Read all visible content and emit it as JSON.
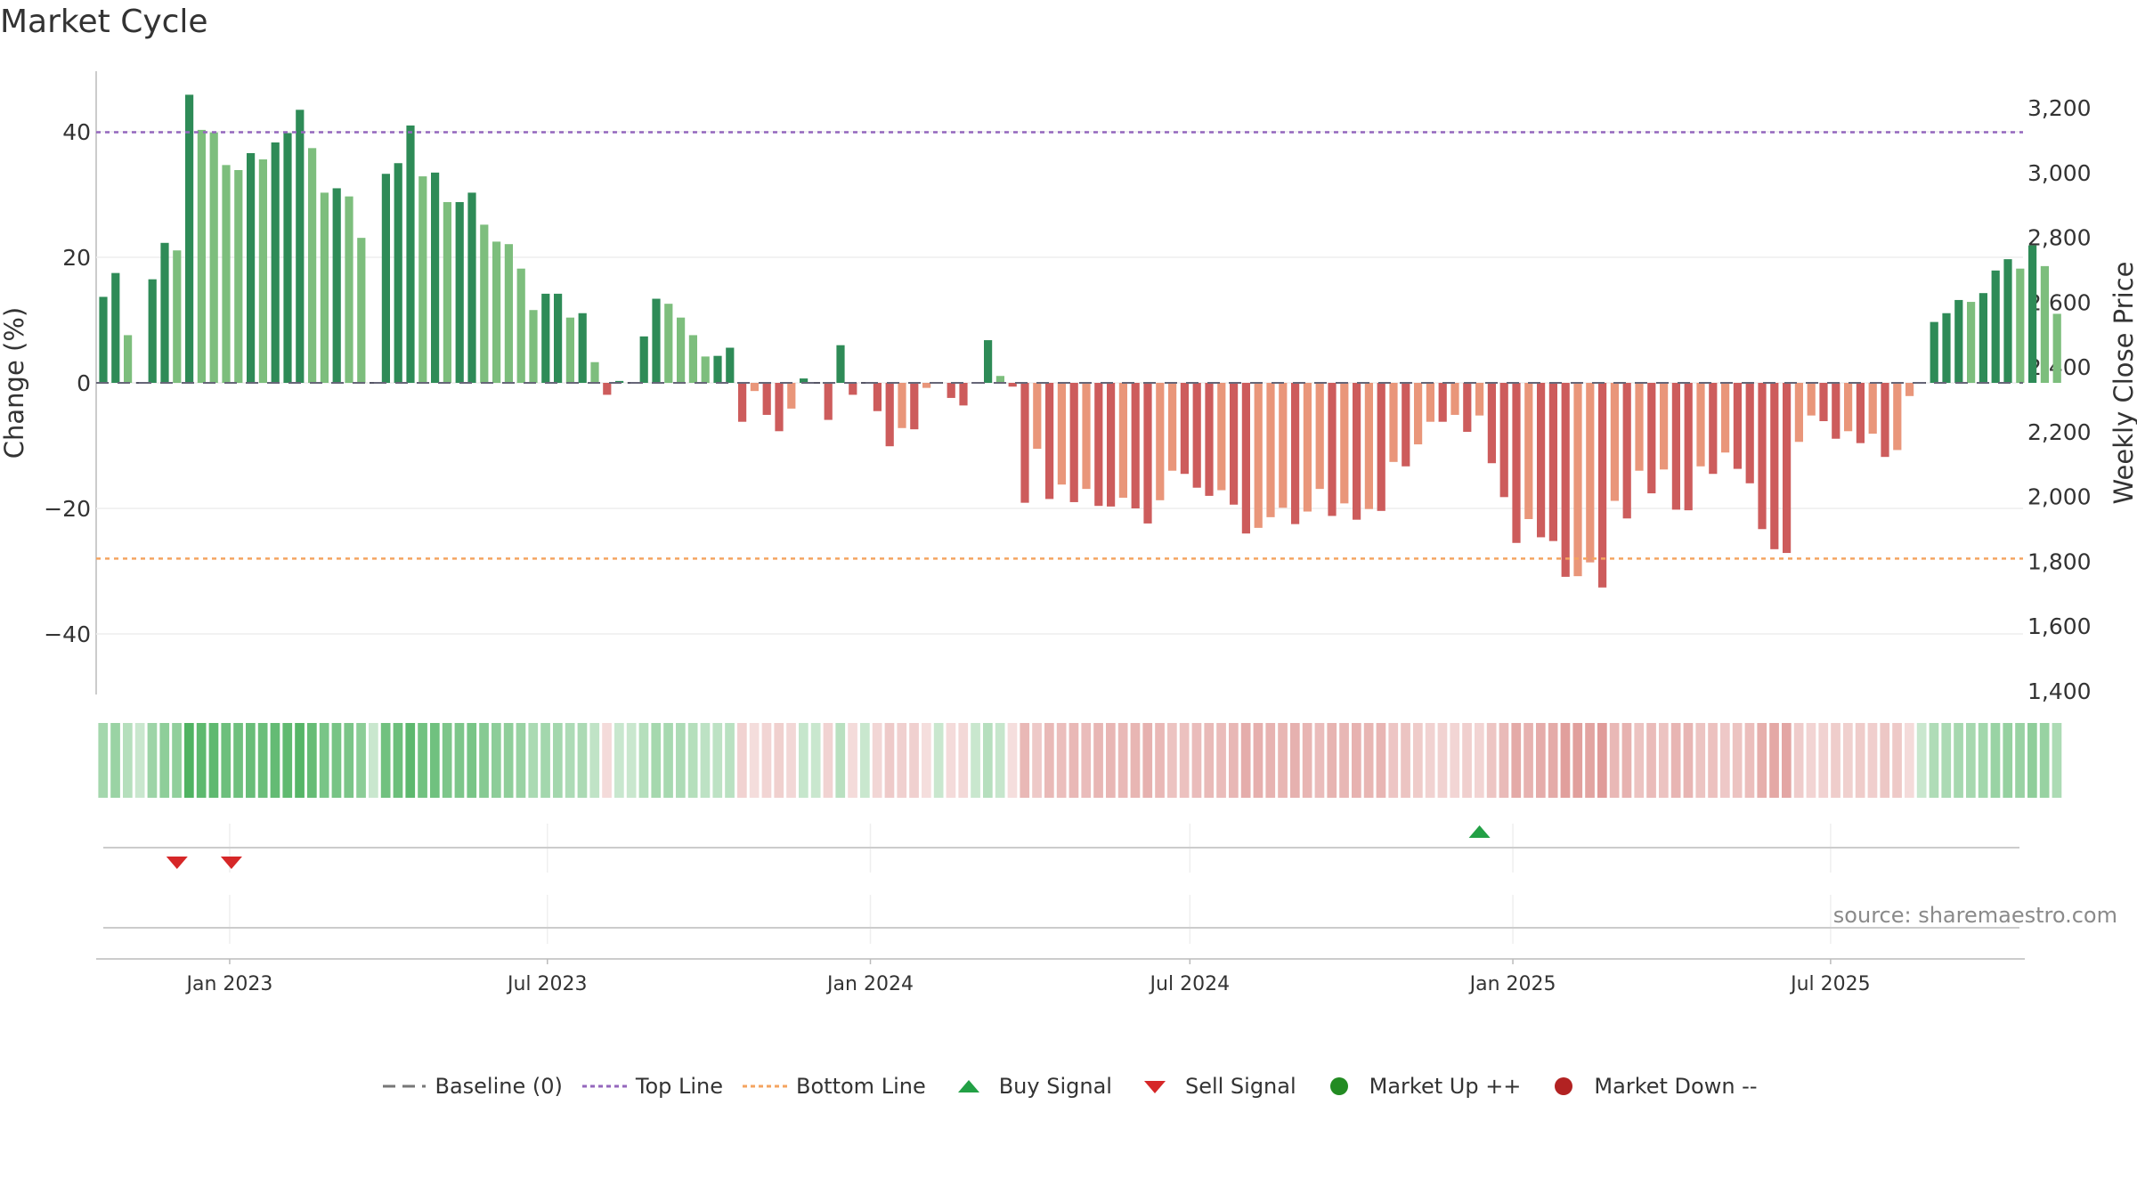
{
  "title": "Market Cycle",
  "source": "source: sharemaestro.com",
  "chart_data": {
    "type": "bar",
    "title": "Market Cycle",
    "start_date": "2022-10-21",
    "ylabel_left": "Change (%)",
    "ylabel_right": "Weekly Close Price",
    "ylim_left": [
      -50,
      50
    ],
    "ylim_right": [
      1400,
      3300
    ],
    "yticks_left": [
      40,
      20,
      0,
      -20,
      -40
    ],
    "yticks_left_labels": [
      "40",
      "20",
      "0",
      "−20",
      "−40"
    ],
    "yticks_right": [
      3200,
      3000,
      2800,
      2600,
      2400,
      2200,
      2000,
      1800,
      1600,
      1400
    ],
    "yticks_right_labels": [
      "3,200",
      "3,000",
      "2,800",
      "2,600",
      "2,400",
      "2,200",
      "2,000",
      "1,800",
      "1,600",
      "1,400"
    ],
    "top_line": 40,
    "bottom_line": -28,
    "xticks": [
      {
        "date": "2023-01-01",
        "label": "Jan 2023"
      },
      {
        "date": "2023-07-01",
        "label": "Jul 2023"
      },
      {
        "date": "2024-01-01",
        "label": "Jan 2024"
      },
      {
        "date": "2024-07-01",
        "label": "Jul 2024"
      },
      {
        "date": "2025-01-01",
        "label": "Jan 2025"
      },
      {
        "date": "2025-07-01",
        "label": "Jul 2025"
      }
    ],
    "values": [
      13.7,
      17.5,
      7.6,
      0,
      16.5,
      22.3,
      21.1,
      45.9,
      40.3,
      39.9,
      34.7,
      33.9,
      36.6,
      35.6,
      38.3,
      39.8,
      43.5,
      37.4,
      30.3,
      31.0,
      29.7,
      23.1,
      0,
      33.3,
      35.0,
      41.0,
      32.9,
      33.5,
      28.8,
      28.8,
      30.3,
      25.2,
      22.5,
      22.1,
      18.2,
      11.6,
      14.2,
      14.2,
      10.4,
      11.1,
      3.3,
      -1.9,
      0.3,
      0,
      7.4,
      13.4,
      12.6,
      10.4,
      7.6,
      4.2,
      4.3,
      5.6,
      -6.2,
      -1.3,
      -5.1,
      -7.7,
      -4.1,
      0.7,
      0,
      -5.9,
      6.0,
      -1.9,
      0,
      -4.5,
      -10.1,
      -7.2,
      -7.4,
      -0.8,
      0,
      -2.4,
      -3.6,
      0,
      6.8,
      1.1,
      -0.6,
      -19.1,
      -10.5,
      -18.5,
      -16.2,
      -19.0,
      -16.9,
      -19.6,
      -19.7,
      -18.3,
      -20.0,
      -22.4,
      -18.7,
      -14.0,
      -14.5,
      -16.7,
      -18.0,
      -17.1,
      -19.4,
      -24.0,
      -23.1,
      -21.4,
      -19.9,
      -22.5,
      -20.5,
      -16.9,
      -21.2,
      -19.2,
      -21.8,
      -20.1,
      -20.4,
      -12.6,
      -13.3,
      -9.8,
      -6.2,
      -6.2,
      -5.1,
      -7.8,
      -5.2,
      -12.8,
      -18.2,
      -25.5,
      -21.7,
      -24.6,
      -25.2,
      -30.9,
      -30.8,
      -28.6,
      -32.6,
      -18.8,
      -21.6,
      -14.0,
      -17.6,
      -13.8,
      -20.2,
      -20.3,
      -13.3,
      -14.5,
      -11.1,
      -13.7,
      -16.0,
      -23.3,
      -26.5,
      -27.1,
      -9.4,
      -5.2,
      -6.1,
      -8.9,
      -7.7,
      -9.6,
      -8.1,
      -11.8,
      -10.7,
      -2.1,
      0,
      9.7,
      11.1,
      13.2,
      12.9,
      14.3,
      17.9,
      19.7,
      18.2,
      21.9,
      18.6,
      11.0
    ],
    "sell_signals": [
      "2022-12-02",
      "2023-01-02"
    ],
    "buy_signals": [
      "2024-12-13"
    ],
    "series": [
      {
        "name": "Baseline (0)",
        "color": "#777777",
        "style": "dashed"
      },
      {
        "name": "Top Line",
        "color": "#9467bd",
        "style": "dotted"
      },
      {
        "name": "Bottom Line",
        "color": "#f4a460",
        "style": "dotted"
      },
      {
        "name": "Buy Signal",
        "color": "#22a045",
        "marker": "triangle-up"
      },
      {
        "name": "Sell Signal",
        "color": "#d62728",
        "marker": "triangle-down"
      },
      {
        "name": "Market Up ++",
        "color": "#228b22",
        "marker": "circle"
      },
      {
        "name": "Market Down --",
        "color": "#b22222",
        "marker": "circle"
      }
    ],
    "colors": {
      "up_strong": "#2e8b57",
      "up_weak": "#7dbe7d",
      "down_strong": "#cd5c5c",
      "down_weak": "#e9967a",
      "top_line": "#9467bd",
      "bottom_line": "#f4a460"
    }
  }
}
